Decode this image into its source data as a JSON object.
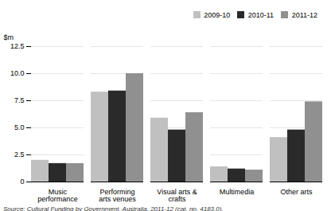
{
  "chart_data": {
    "type": "bar",
    "categories": [
      "Music\nperformance",
      "Performing\narts venues",
      "Visual arts &\ncrafts",
      "Multimedia",
      "Other arts"
    ],
    "series": [
      {
        "name": "2009-10",
        "color": "#c0c0c0",
        "values": [
          2.0,
          8.3,
          5.9,
          1.4,
          4.1
        ]
      },
      {
        "name": "2010-11",
        "color": "#2a2a2a",
        "values": [
          1.7,
          8.4,
          4.8,
          1.2,
          4.8
        ]
      },
      {
        "name": "2011-12",
        "color": "#909090",
        "values": [
          1.7,
          10.0,
          6.4,
          1.1,
          7.4
        ]
      }
    ],
    "ylabel": "$m",
    "ylim": [
      0,
      12.5
    ],
    "yticks": [
      0,
      2.5,
      {
        "value": 5.0,
        "label": "5.0"
      },
      7.5,
      {
        "value": 10.0,
        "label": "10.0"
      },
      12.5
    ],
    "grid": true,
    "legend": "upper right",
    "annotations": [
      "Source: Cultural Funding by Government, Australia, 2011-12 (cat. no. 4183.0)."
    ]
  }
}
